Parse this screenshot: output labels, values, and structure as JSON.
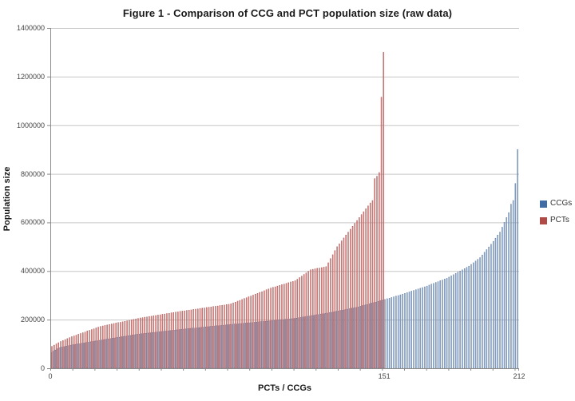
{
  "chart": {
    "title": "Figure 1 - Comparison of CCG and PCT population size (raw data)",
    "y_axis_title": "Population size",
    "x_axis_title": "PCTs / CCGs"
  },
  "chart_data": {
    "type": "bar",
    "title": "Figure 1 - Comparison of CCG and PCT population size (raw data)",
    "xlabel": "PCTs / CCGs",
    "ylabel": "Population size",
    "ylim": [
      0,
      1400000
    ],
    "y_tick_interval": 200000,
    "y_tick_labels": [
      "0",
      "200000",
      "400000",
      "600000",
      "800000",
      "1000000",
      "1200000",
      "1400000"
    ],
    "x_tick_labels": [
      {
        "label": "0",
        "category_index": 0
      },
      {
        "label": "151",
        "category_index": 151
      },
      {
        "label": "212",
        "category_index": 212
      }
    ],
    "x_minor_tick_interval": 10,
    "num_categories": 212,
    "grid": true,
    "legend_position": "right",
    "colors": {
      "ccg_fill": "#BBCFE5",
      "ccg_stroke": "#51719E",
      "pct_fill": "#E2A9A8",
      "pct_stroke": "#AE4B48",
      "gridline": "#C6C6C6",
      "axis": "#8A8A8A",
      "legend_ccg": "#3F6CA5",
      "legend_pct": "#B04A47"
    },
    "series": [
      {
        "name": "CCGs",
        "values": [
          65000,
          70000,
          75000,
          80000,
          85000,
          87000,
          89000,
          91000,
          93000,
          95000,
          97000,
          98000,
          100000,
          101000,
          103000,
          104000,
          106000,
          107000,
          109000,
          110000,
          112000,
          113000,
          115000,
          116000,
          118000,
          119000,
          121000,
          122000,
          124000,
          125000,
          127000,
          128000,
          130000,
          131000,
          132000,
          134000,
          135000,
          137000,
          138000,
          140000,
          141000,
          142000,
          143000,
          144000,
          145000,
          146000,
          147000,
          148000,
          149000,
          150000,
          151000,
          152000,
          153000,
          154000,
          155000,
          156000,
          157000,
          158000,
          159000,
          160000,
          161000,
          162000,
          163000,
          164000,
          165000,
          165000,
          166000,
          167000,
          168000,
          169000,
          170000,
          171000,
          172000,
          173000,
          174000,
          175000,
          175000,
          176000,
          177000,
          178000,
          179000,
          180000,
          181000,
          182000,
          182000,
          183000,
          184000,
          185000,
          186000,
          187000,
          187000,
          188000,
          189000,
          190000,
          191000,
          192000,
          192000,
          193000,
          194000,
          195000,
          196000,
          197000,
          198000,
          199000,
          200000,
          200000,
          201000,
          202000,
          203000,
          204000,
          205000,
          206000,
          208000,
          209000,
          211000,
          212000,
          214000,
          215000,
          217000,
          218000,
          220000,
          221000,
          223000,
          224000,
          225000,
          227000,
          229000,
          230000,
          232000,
          234000,
          236000,
          238000,
          239000,
          241000,
          243000,
          245000,
          247000,
          248000,
          250000,
          252000,
          255000,
          258000,
          260000,
          262000,
          265000,
          268000,
          270000,
          272000,
          275000,
          278000,
          280000,
          283000,
          286000,
          288000,
          291000,
          294000,
          297000,
          299000,
          302000,
          305000,
          308000,
          311000,
          314000,
          317000,
          320000,
          323000,
          326000,
          329000,
          332000,
          335000,
          338000,
          342000,
          346000,
          349000,
          353000,
          356000,
          360000,
          363000,
          367000,
          370000,
          375000,
          380000,
          385000,
          390000,
          395000,
          400000,
          405000,
          410000,
          415000,
          420000,
          427000,
          434000,
          441000,
          448000,
          455000,
          466000,
          477000,
          488000,
          499000,
          510000,
          522000,
          535000,
          548000,
          560000,
          580000,
          600000,
          620000,
          640000,
          675000,
          690000,
          760000,
          900000
        ]
      },
      {
        "name": "PCTs",
        "values": [
          90000,
          95000,
          100000,
          105000,
          110000,
          114000,
          118000,
          122000,
          126000,
          130000,
          133000,
          136000,
          140000,
          143000,
          146000,
          149000,
          153000,
          156000,
          159000,
          162000,
          166000,
          169000,
          172000,
          174000,
          176000,
          178000,
          180000,
          182000,
          184000,
          186000,
          188000,
          189000,
          191000,
          193000,
          195000,
          197000,
          199000,
          201000,
          203000,
          205000,
          207000,
          208000,
          210000,
          211000,
          213000,
          214000,
          216000,
          217000,
          219000,
          220000,
          222000,
          223000,
          225000,
          226000,
          228000,
          229000,
          231000,
          232000,
          234000,
          235000,
          236000,
          238000,
          239000,
          240000,
          242000,
          243000,
          244000,
          246000,
          247000,
          248000,
          250000,
          251000,
          252000,
          254000,
          255000,
          256000,
          258000,
          259000,
          260000,
          262000,
          263000,
          265000,
          269000,
          272000,
          276000,
          279000,
          283000,
          287000,
          290000,
          294000,
          297000,
          301000,
          305000,
          308000,
          312000,
          315000,
          319000,
          323000,
          326000,
          330000,
          333000,
          335000,
          338000,
          341000,
          344000,
          346000,
          349000,
          352000,
          355000,
          357000,
          360000,
          366000,
          373000,
          379000,
          386000,
          392000,
          399000,
          405000,
          407000,
          409000,
          411000,
          412000,
          414000,
          416000,
          418000,
          434000,
          451000,
          467000,
          484000,
          500000,
          512000,
          524000,
          536000,
          548000,
          560000,
          572000,
          584000,
          596000,
          608000,
          620000,
          632000,
          644000,
          656000,
          668000,
          680000,
          690000,
          780000,
          790000,
          805000,
          1115000,
          1300000
        ]
      }
    ]
  }
}
